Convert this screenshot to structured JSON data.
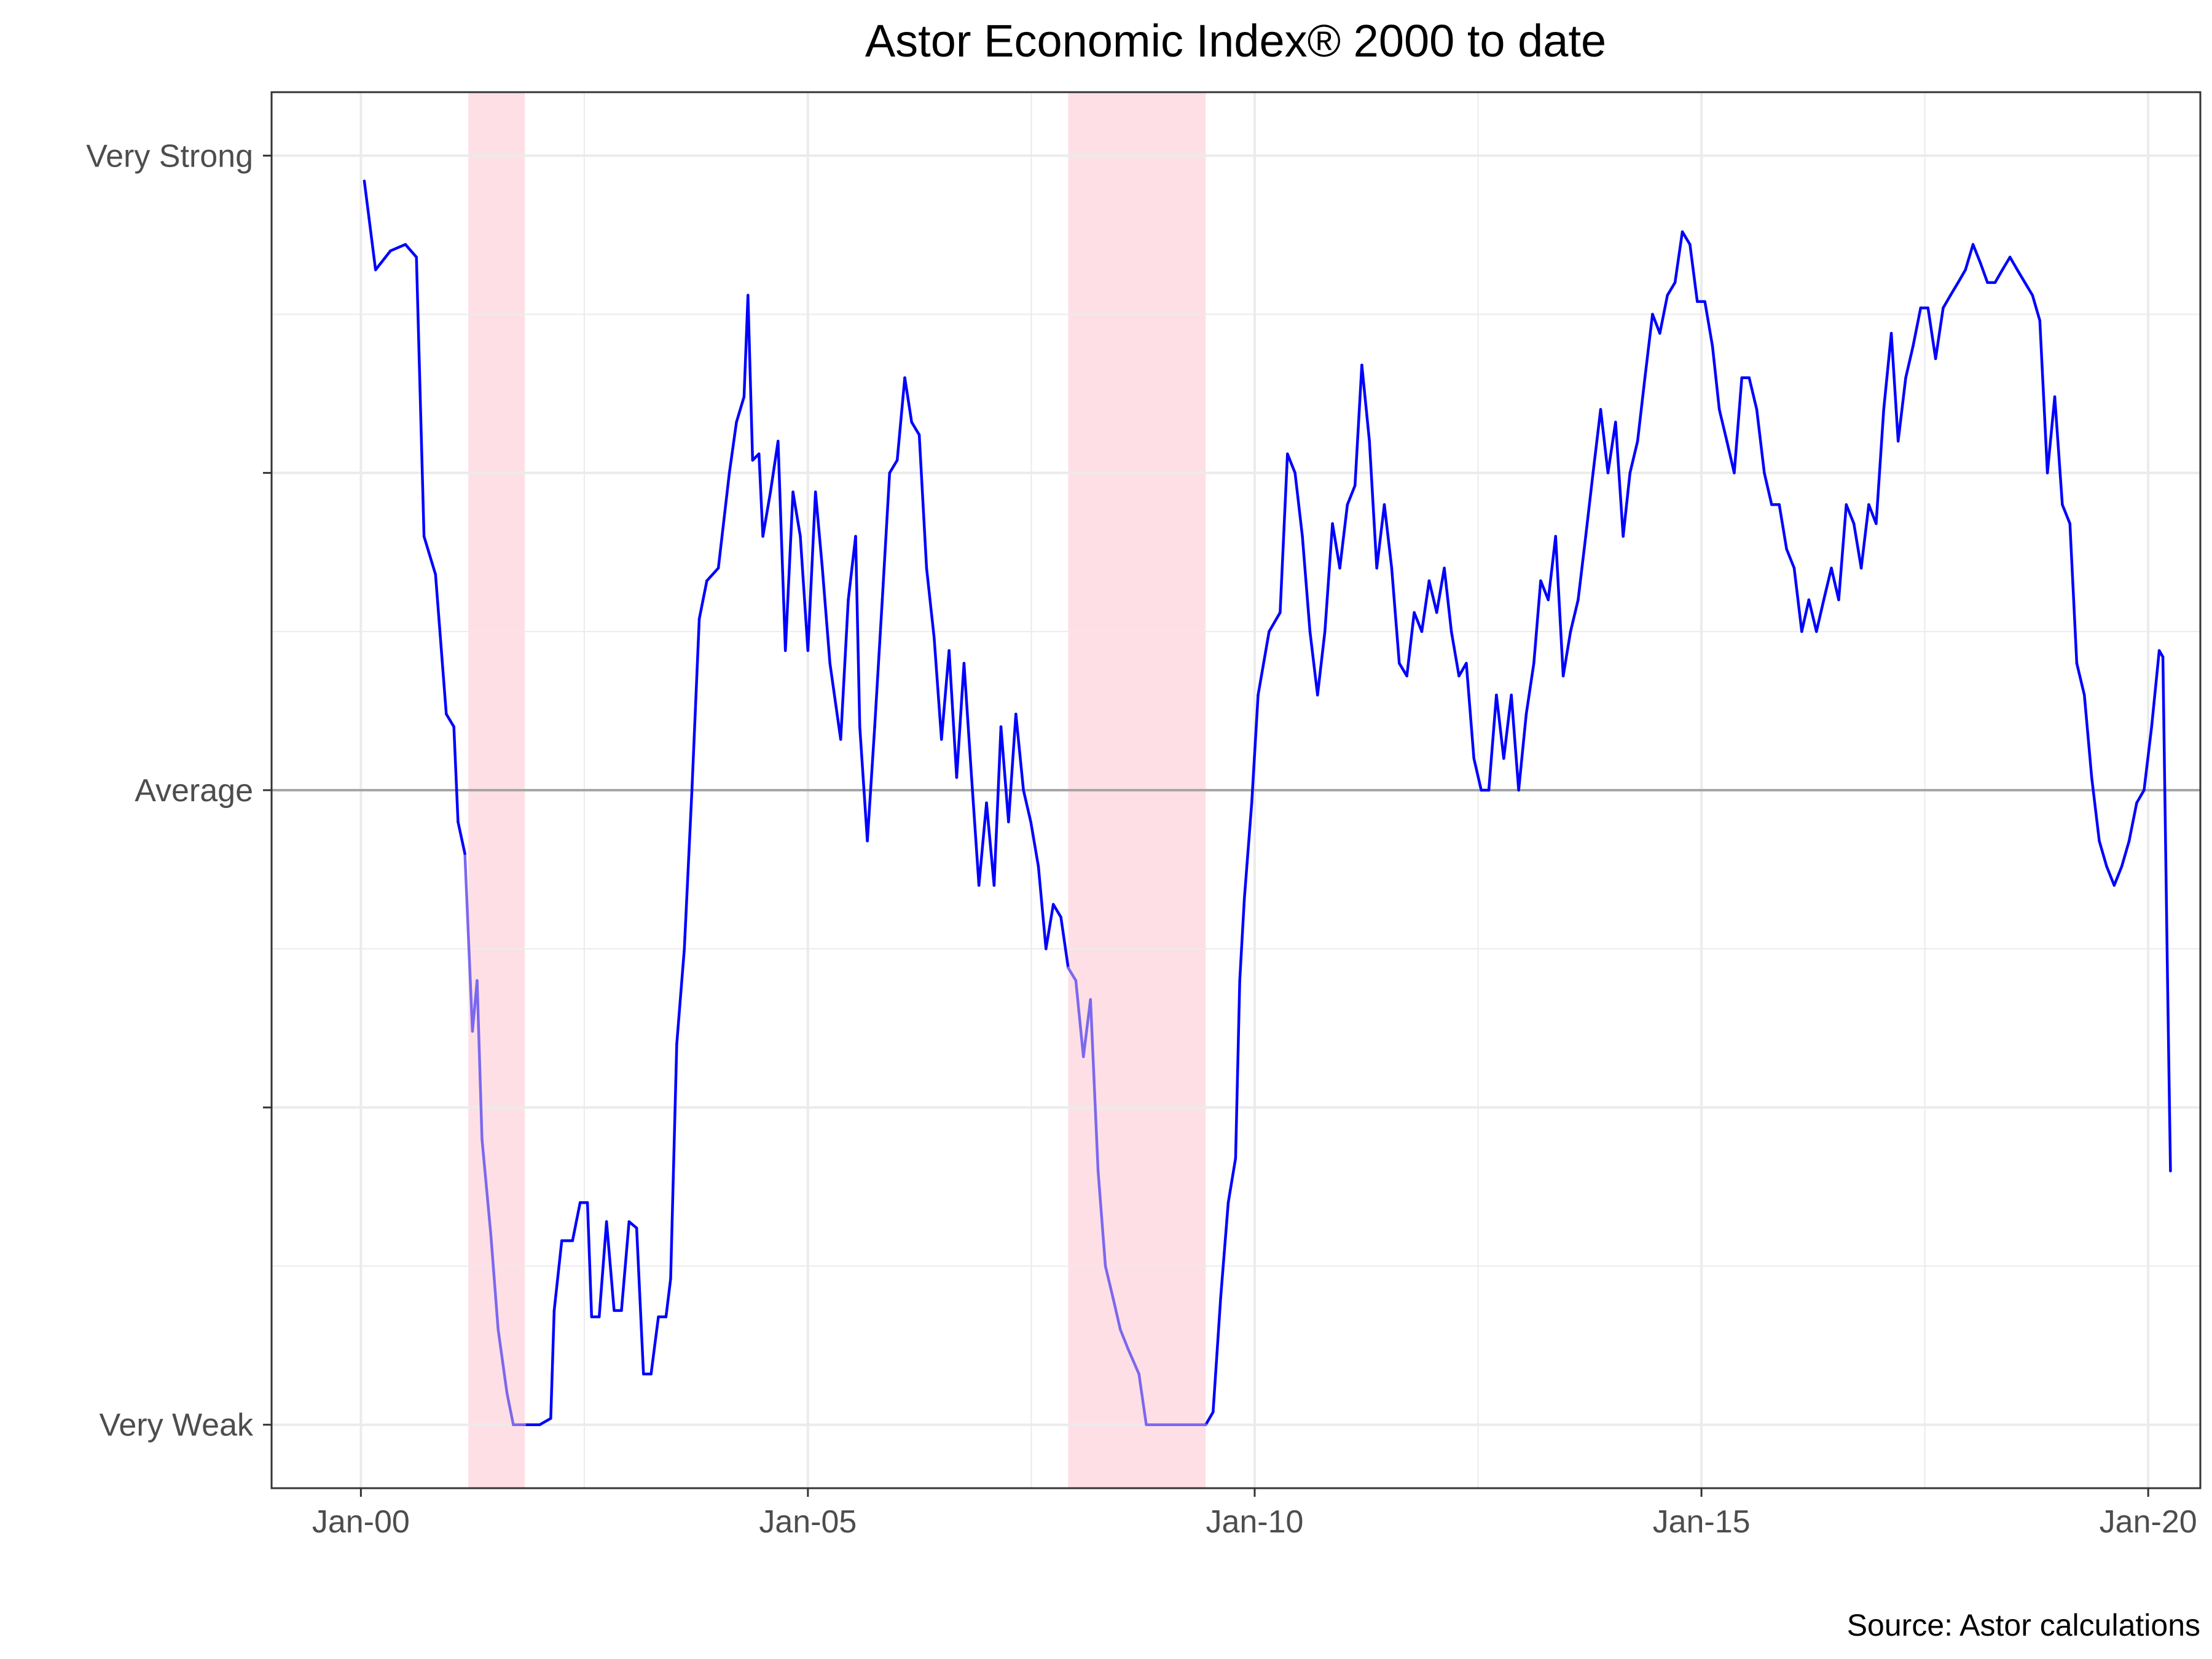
{
  "chart_data": {
    "type": "line",
    "title": "Astor Economic Index® 2000 to date",
    "caption": "Source: Astor calculations",
    "xlabel": "",
    "ylabel": "",
    "x_domain": [
      "1999-01-01",
      "2020-08-01"
    ],
    "ylim": [
      -1.1,
      1.1
    ],
    "x_ticks": [
      {
        "date": "2000-01-01",
        "label": "Jan-00"
      },
      {
        "date": "2005-01-01",
        "label": "Jan-05"
      },
      {
        "date": "2010-01-01",
        "label": "Jan-10"
      },
      {
        "date": "2015-01-01",
        "label": "Jan-15"
      },
      {
        "date": "2020-01-01",
        "label": "Jan-20"
      }
    ],
    "y_ticks": [
      {
        "value": 1.0,
        "label": "Very Strong"
      },
      {
        "value": 0.5,
        "label": ""
      },
      {
        "value": 0.0,
        "label": "Average"
      },
      {
        "value": -0.5,
        "label": ""
      },
      {
        "value": -1.0,
        "label": "Very Weak"
      }
    ],
    "reference_line": {
      "value": 0,
      "color": "#a6a6a6"
    },
    "recessions": [
      {
        "start": "2001-03-15",
        "end": "2001-11-01"
      },
      {
        "start": "2007-12-01",
        "end": "2009-06-15"
      }
    ],
    "grid": true,
    "legend": "none",
    "colors": {
      "line": "#0000ff",
      "line_in_recession": "#7b68ee",
      "recession_band": "#ffdfe6",
      "grid": "#ebebeb",
      "panel_border": "#333333"
    },
    "series": [
      {
        "points": [
          [
            "2000-01-15",
            0.96
          ],
          [
            "2000-03-01",
            0.82
          ],
          [
            "2000-05-01",
            0.85
          ],
          [
            "2000-07-01",
            0.86
          ],
          [
            "2000-08-15",
            0.84
          ],
          [
            "2000-09-15",
            0.4
          ],
          [
            "2000-11-01",
            0.34
          ],
          [
            "2000-12-15",
            0.12
          ],
          [
            "2001-01-15",
            0.1
          ],
          [
            "2001-02-01",
            -0.05
          ],
          [
            "2001-03-01",
            -0.1
          ],
          [
            "2001-04-01",
            -0.38
          ],
          [
            "2001-04-20",
            -0.3
          ],
          [
            "2001-05-10",
            -0.55
          ],
          [
            "2001-06-15",
            -0.7
          ],
          [
            "2001-07-15",
            -0.85
          ],
          [
            "2001-08-20",
            -0.95
          ],
          [
            "2001-09-15",
            -1.0
          ],
          [
            "2001-11-01",
            -1.0
          ],
          [
            "2002-01-01",
            -1.0
          ],
          [
            "2002-02-15",
            -0.99
          ],
          [
            "2002-03-01",
            -0.82
          ],
          [
            "2002-04-01",
            -0.71
          ],
          [
            "2002-05-15",
            -0.71
          ],
          [
            "2002-06-15",
            -0.65
          ],
          [
            "2002-07-15",
            -0.65
          ],
          [
            "2002-08-01",
            -0.83
          ],
          [
            "2002-09-01",
            -0.83
          ],
          [
            "2002-10-01",
            -0.68
          ],
          [
            "2002-11-01",
            -0.82
          ],
          [
            "2002-12-01",
            -0.82
          ],
          [
            "2003-01-01",
            -0.68
          ],
          [
            "2003-02-01",
            -0.69
          ],
          [
            "2003-03-01",
            -0.92
          ],
          [
            "2003-04-01",
            -0.92
          ],
          [
            "2003-05-01",
            -0.83
          ],
          [
            "2003-06-01",
            -0.83
          ],
          [
            "2003-06-20",
            -0.77
          ],
          [
            "2003-07-15",
            -0.4
          ],
          [
            "2003-08-15",
            -0.25
          ],
          [
            "2003-09-15",
            0.0
          ],
          [
            "2003-10-15",
            0.27
          ],
          [
            "2003-11-15",
            0.33
          ],
          [
            "2004-01-01",
            0.35
          ],
          [
            "2004-02-15",
            0.5
          ],
          [
            "2004-03-15",
            0.58
          ],
          [
            "2004-04-15",
            0.62
          ],
          [
            "2004-05-01",
            0.78
          ],
          [
            "2004-05-20",
            0.52
          ],
          [
            "2004-06-15",
            0.53
          ],
          [
            "2004-07-01",
            0.4
          ],
          [
            "2004-08-01",
            0.47
          ],
          [
            "2004-09-01",
            0.55
          ],
          [
            "2004-10-01",
            0.22
          ],
          [
            "2004-11-01",
            0.47
          ],
          [
            "2004-12-01",
            0.4
          ],
          [
            "2005-01-01",
            0.22
          ],
          [
            "2005-02-01",
            0.47
          ],
          [
            "2005-03-01",
            0.35
          ],
          [
            "2005-04-01",
            0.2
          ],
          [
            "2005-05-15",
            0.08
          ],
          [
            "2005-06-15",
            0.3
          ],
          [
            "2005-07-15",
            0.4
          ],
          [
            "2005-08-01",
            0.1
          ],
          [
            "2005-09-01",
            -0.08
          ],
          [
            "2005-10-01",
            0.1
          ],
          [
            "2005-11-01",
            0.3
          ],
          [
            "2005-12-01",
            0.5
          ],
          [
            "2006-01-01",
            0.52
          ],
          [
            "2006-02-01",
            0.65
          ],
          [
            "2006-03-01",
            0.58
          ],
          [
            "2006-04-01",
            0.56
          ],
          [
            "2006-05-01",
            0.35
          ],
          [
            "2006-06-01",
            0.24
          ],
          [
            "2006-07-01",
            0.08
          ],
          [
            "2006-08-01",
            0.22
          ],
          [
            "2006-09-01",
            0.02
          ],
          [
            "2006-10-01",
            0.2
          ],
          [
            "2006-11-01",
            0.02
          ],
          [
            "2006-12-01",
            -0.15
          ],
          [
            "2007-01-01",
            -0.02
          ],
          [
            "2007-02-01",
            -0.15
          ],
          [
            "2007-03-01",
            0.1
          ],
          [
            "2007-04-01",
            -0.05
          ],
          [
            "2007-05-01",
            0.12
          ],
          [
            "2007-06-01",
            0.0
          ],
          [
            "2007-07-01",
            -0.05
          ],
          [
            "2007-08-01",
            -0.12
          ],
          [
            "2007-09-01",
            -0.25
          ],
          [
            "2007-10-01",
            -0.18
          ],
          [
            "2007-11-01",
            -0.2
          ],
          [
            "2007-12-01",
            -0.28
          ],
          [
            "2008-01-01",
            -0.3
          ],
          [
            "2008-02-01",
            -0.42
          ],
          [
            "2008-03-01",
            -0.33
          ],
          [
            "2008-04-01",
            -0.6
          ],
          [
            "2008-05-01",
            -0.75
          ],
          [
            "2008-06-01",
            -0.8
          ],
          [
            "2008-07-01",
            -0.85
          ],
          [
            "2008-08-01",
            -0.88
          ],
          [
            "2008-09-15",
            -0.92
          ],
          [
            "2008-10-15",
            -1.0
          ],
          [
            "2009-06-15",
            -1.0
          ],
          [
            "2009-07-15",
            -0.98
          ],
          [
            "2009-08-15",
            -0.8
          ],
          [
            "2009-09-15",
            -0.65
          ],
          [
            "2009-10-15",
            -0.58
          ],
          [
            "2009-11-01",
            -0.3
          ],
          [
            "2009-11-20",
            -0.17
          ],
          [
            "2009-12-20",
            -0.02
          ],
          [
            "2010-01-15",
            0.15
          ],
          [
            "2010-03-01",
            0.25
          ],
          [
            "2010-04-15",
            0.28
          ],
          [
            "2010-05-15",
            0.53
          ],
          [
            "2010-06-15",
            0.5
          ],
          [
            "2010-07-15",
            0.4
          ],
          [
            "2010-08-15",
            0.25
          ],
          [
            "2010-09-15",
            0.15
          ],
          [
            "2010-10-15",
            0.25
          ],
          [
            "2010-11-15",
            0.42
          ],
          [
            "2010-12-15",
            0.35
          ],
          [
            "2011-01-15",
            0.45
          ],
          [
            "2011-02-15",
            0.48
          ],
          [
            "2011-03-15",
            0.67
          ],
          [
            "2011-04-15",
            0.55
          ],
          [
            "2011-05-15",
            0.35
          ],
          [
            "2011-06-15",
            0.45
          ],
          [
            "2011-07-15",
            0.35
          ],
          [
            "2011-08-15",
            0.2
          ],
          [
            "2011-09-15",
            0.18
          ],
          [
            "2011-10-15",
            0.28
          ],
          [
            "2011-11-15",
            0.25
          ],
          [
            "2011-12-15",
            0.33
          ],
          [
            "2012-01-15",
            0.28
          ],
          [
            "2012-02-15",
            0.35
          ],
          [
            "2012-03-15",
            0.25
          ],
          [
            "2012-04-15",
            0.18
          ],
          [
            "2012-05-15",
            0.2
          ],
          [
            "2012-06-15",
            0.05
          ],
          [
            "2012-07-15",
            0.0
          ],
          [
            "2012-08-15",
            0.0
          ],
          [
            "2012-09-15",
            0.15
          ],
          [
            "2012-10-15",
            0.05
          ],
          [
            "2012-11-15",
            0.15
          ],
          [
            "2012-12-15",
            0.0
          ],
          [
            "2013-01-15",
            0.12
          ],
          [
            "2013-02-15",
            0.2
          ],
          [
            "2013-03-15",
            0.33
          ],
          [
            "2013-04-15",
            0.3
          ],
          [
            "2013-05-15",
            0.4
          ],
          [
            "2013-06-15",
            0.18
          ],
          [
            "2013-07-15",
            0.25
          ],
          [
            "2013-08-15",
            0.3
          ],
          [
            "2013-09-15",
            0.4
          ],
          [
            "2013-10-15",
            0.5
          ],
          [
            "2013-11-15",
            0.6
          ],
          [
            "2013-12-15",
            0.5
          ],
          [
            "2014-01-15",
            0.58
          ],
          [
            "2014-02-15",
            0.4
          ],
          [
            "2014-03-15",
            0.5
          ],
          [
            "2014-04-15",
            0.55
          ],
          [
            "2014-05-15",
            0.65
          ],
          [
            "2014-06-15",
            0.75
          ],
          [
            "2014-07-15",
            0.72
          ],
          [
            "2014-08-15",
            0.78
          ],
          [
            "2014-09-15",
            0.8
          ],
          [
            "2014-10-15",
            0.88
          ],
          [
            "2014-11-15",
            0.86
          ],
          [
            "2014-12-15",
            0.77
          ],
          [
            "2015-01-15",
            0.77
          ],
          [
            "2015-02-15",
            0.7
          ],
          [
            "2015-03-15",
            0.6
          ],
          [
            "2015-04-15",
            0.55
          ],
          [
            "2015-05-15",
            0.5
          ],
          [
            "2015-06-15",
            0.65
          ],
          [
            "2015-07-15",
            0.65
          ],
          [
            "2015-08-15",
            0.6
          ],
          [
            "2015-09-15",
            0.5
          ],
          [
            "2015-10-15",
            0.45
          ],
          [
            "2015-11-15",
            0.45
          ],
          [
            "2015-12-15",
            0.38
          ],
          [
            "2016-01-15",
            0.35
          ],
          [
            "2016-02-15",
            0.25
          ],
          [
            "2016-03-15",
            0.3
          ],
          [
            "2016-04-15",
            0.25
          ],
          [
            "2016-05-15",
            0.3
          ],
          [
            "2016-06-15",
            0.35
          ],
          [
            "2016-07-15",
            0.3
          ],
          [
            "2016-08-15",
            0.45
          ],
          [
            "2016-09-15",
            0.42
          ],
          [
            "2016-10-15",
            0.35
          ],
          [
            "2016-11-15",
            0.45
          ],
          [
            "2016-12-15",
            0.42
          ],
          [
            "2017-01-15",
            0.6
          ],
          [
            "2017-02-15",
            0.72
          ],
          [
            "2017-03-15",
            0.55
          ],
          [
            "2017-04-15",
            0.65
          ],
          [
            "2017-05-15",
            0.7
          ],
          [
            "2017-06-15",
            0.76
          ],
          [
            "2017-07-15",
            0.76
          ],
          [
            "2017-08-15",
            0.68
          ],
          [
            "2017-09-15",
            0.76
          ],
          [
            "2017-10-15",
            0.78
          ],
          [
            "2017-11-15",
            0.8
          ],
          [
            "2017-12-15",
            0.82
          ],
          [
            "2018-01-15",
            0.86
          ],
          [
            "2018-02-15",
            0.83
          ],
          [
            "2018-03-15",
            0.8
          ],
          [
            "2018-04-15",
            0.8
          ],
          [
            "2018-05-15",
            0.82
          ],
          [
            "2018-06-15",
            0.84
          ],
          [
            "2018-07-15",
            0.82
          ],
          [
            "2018-08-15",
            0.8
          ],
          [
            "2018-09-15",
            0.78
          ],
          [
            "2018-10-15",
            0.74
          ],
          [
            "2018-11-15",
            0.5
          ],
          [
            "2018-12-15",
            0.62
          ],
          [
            "2019-01-15",
            0.45
          ],
          [
            "2019-02-15",
            0.42
          ],
          [
            "2019-03-15",
            0.2
          ],
          [
            "2019-04-15",
            0.15
          ],
          [
            "2019-05-15",
            0.02
          ],
          [
            "2019-06-15",
            -0.08
          ],
          [
            "2019-07-15",
            -0.12
          ],
          [
            "2019-08-15",
            -0.15
          ],
          [
            "2019-09-15",
            -0.12
          ],
          [
            "2019-10-15",
            -0.08
          ],
          [
            "2019-11-15",
            -0.02
          ],
          [
            "2019-12-15",
            0.0
          ],
          [
            "2020-01-15",
            0.1
          ],
          [
            "2020-02-15",
            0.22
          ],
          [
            "2020-03-01",
            0.21
          ],
          [
            "2020-03-20",
            -0.3
          ],
          [
            "2020-04-01",
            -0.6
          ]
        ]
      }
    ]
  }
}
